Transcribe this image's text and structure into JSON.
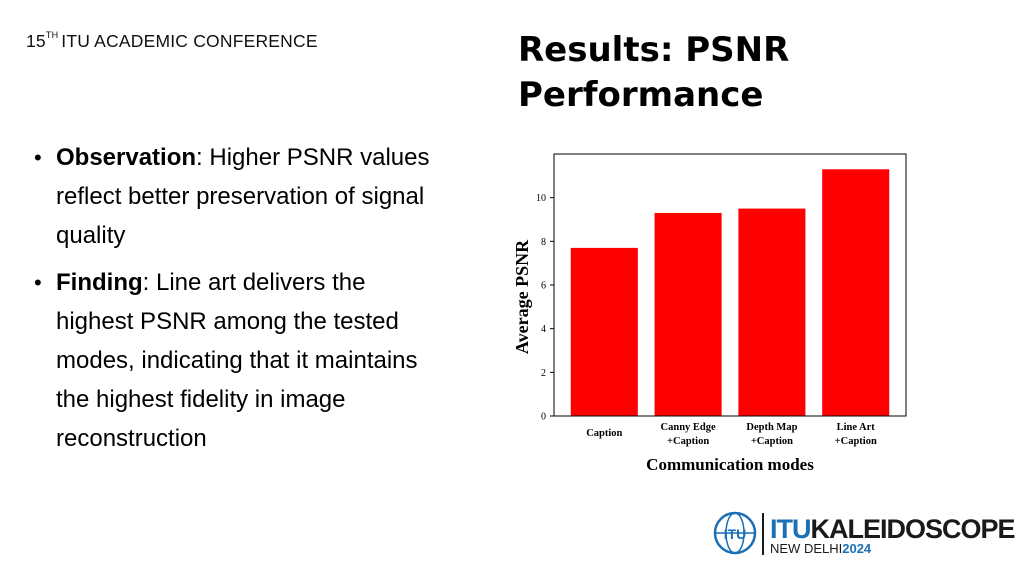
{
  "header": {
    "number": "15",
    "superscript": "TH",
    "text": "ITU ACADEMIC CONFERENCE"
  },
  "slide_title": "Results: PSNR Performance",
  "bullets": [
    {
      "term": "Observation",
      "text": ": Higher PSNR values reflect better preservation of signal quality"
    },
    {
      "term": "Finding",
      "text": ": Line art delivers the highest PSNR among the tested modes, indicating that it maintains the highest fidelity in image reconstruction"
    }
  ],
  "logo": {
    "itu": "ITU",
    "kaleidoscope": "KALEIDOSCOPE",
    "city": "NEW DELHI",
    "year": "2024",
    "globe_text": "ITU"
  },
  "chart_data": {
    "type": "bar",
    "categories": [
      [
        "Caption"
      ],
      [
        "Canny Edge",
        "+Caption"
      ],
      [
        "Depth Map",
        "+Caption"
      ],
      [
        "Line Art",
        "+Caption"
      ]
    ],
    "values": [
      7.7,
      9.3,
      9.5,
      11.3
    ],
    "xlabel": "Communication modes",
    "ylabel": "Average PSNR",
    "ylim": [
      0,
      12
    ],
    "yticks": [
      0,
      2,
      4,
      6,
      8,
      10
    ],
    "bar_color": "#ff0000",
    "grid": false
  }
}
